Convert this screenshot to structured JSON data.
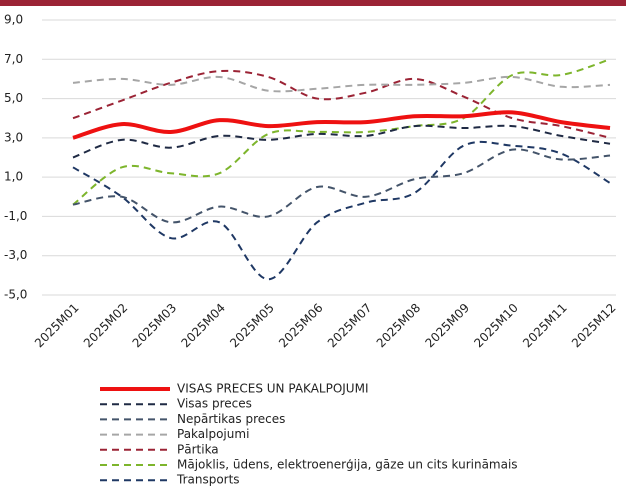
{
  "chart_data": {
    "type": "line",
    "categories": [
      "2025M01",
      "2025M02",
      "2025M03",
      "2025M04",
      "2025M05",
      "2025M06",
      "2025M07",
      "2025M08",
      "2025M09",
      "2025M10",
      "2025M11",
      "2025M12"
    ],
    "ylim": [
      -5,
      9
    ],
    "yticks": [
      {
        "value": -5,
        "label": "-5,0"
      },
      {
        "value": -3,
        "label": "-3,0"
      },
      {
        "value": -1,
        "label": "-1,0"
      },
      {
        "value": 1,
        "label": "1,0"
      },
      {
        "value": 3,
        "label": "3,0"
      },
      {
        "value": 5,
        "label": "5,0"
      },
      {
        "value": 7,
        "label": "7,0"
      },
      {
        "value": 9,
        "label": "9,0"
      }
    ],
    "grid": true,
    "series": [
      {
        "name": "VISAS PRECES UN PAKALPOJUMI",
        "color": "#ee1111",
        "values": [
          3.0,
          3.7,
          3.3,
          3.9,
          3.6,
          3.8,
          3.8,
          4.1,
          4.1,
          4.3,
          3.8,
          3.5
        ]
      },
      {
        "name": "Visas preces",
        "color": "#1f2a44",
        "values": [
          2.0,
          2.9,
          2.5,
          3.1,
          2.9,
          3.2,
          3.1,
          3.6,
          3.5,
          3.6,
          3.1,
          2.7
        ]
      },
      {
        "name": "Nepārtikas preces",
        "color": "#44546a",
        "values": [
          -0.4,
          0.0,
          -1.3,
          -0.5,
          -1.0,
          0.5,
          0.0,
          0.9,
          1.2,
          2.4,
          1.9,
          2.1
        ]
      },
      {
        "name": "Pakalpojumi",
        "color": "#a6a6a6",
        "values": [
          5.8,
          6.0,
          5.7,
          6.1,
          5.4,
          5.5,
          5.7,
          5.7,
          5.8,
          6.1,
          5.6,
          5.7
        ]
      },
      {
        "name": "Pārtika",
        "color": "#9b2335",
        "values": [
          4.0,
          4.9,
          5.8,
          6.4,
          6.1,
          5.0,
          5.3,
          6.0,
          5.1,
          4.0,
          3.6,
          3.0
        ]
      },
      {
        "name": "Mājoklis, ūdens, elektroenerģija, gāze un cits kurināmais",
        "color": "#7db52c",
        "values": [
          -0.4,
          1.5,
          1.2,
          1.2,
          3.2,
          3.3,
          3.3,
          3.6,
          4.0,
          6.2,
          6.2,
          7.0
        ]
      },
      {
        "name": "Transports",
        "color": "#1f3864",
        "values": [
          1.5,
          0.0,
          -2.1,
          -1.3,
          -4.2,
          -1.3,
          -0.3,
          0.2,
          2.6,
          2.6,
          2.2,
          0.7
        ]
      }
    ]
  }
}
